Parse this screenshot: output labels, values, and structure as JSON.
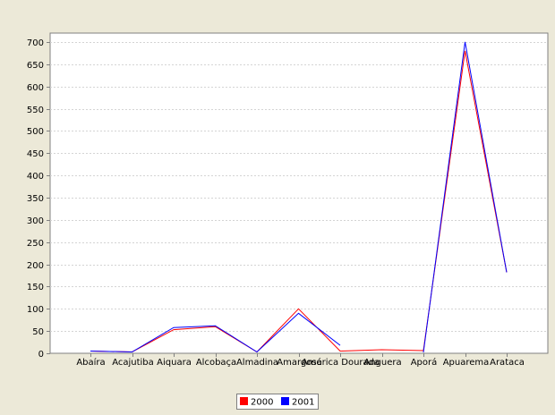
{
  "chart_data": {
    "type": "line",
    "title": "",
    "xlabel": "",
    "ylabel": "",
    "categories": [
      "Abaíra",
      "Acajutiba",
      "Aiquara",
      "Alcobaça",
      "Almadina",
      "Amargosa",
      "América Dourada",
      "Anguera",
      "Aporá",
      "Apuarema",
      "Arataca"
    ],
    "ylim": [
      0,
      720
    ],
    "yticks": [
      0,
      50,
      100,
      150,
      200,
      250,
      300,
      350,
      400,
      450,
      500,
      550,
      600,
      650,
      700
    ],
    "grid": true,
    "legend_position": "bottom",
    "series": [
      {
        "name": "2000",
        "color": "#ff0000",
        "values": [
          5,
          3,
          53,
          60,
          3,
          100,
          5,
          8,
          6,
          680,
          182
        ]
      },
      {
        "name": "2001",
        "color": "#0000ff",
        "values": [
          5,
          3,
          58,
          62,
          3,
          90,
          18,
          null,
          2,
          700,
          182
        ]
      }
    ]
  }
}
